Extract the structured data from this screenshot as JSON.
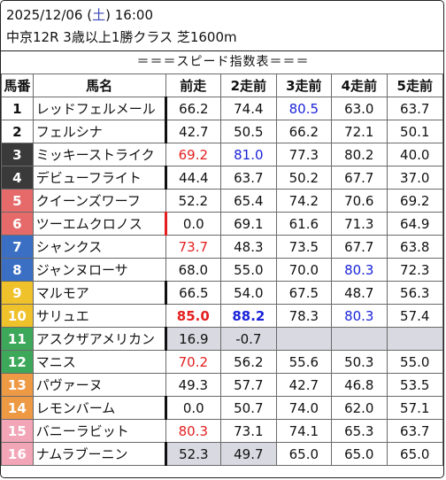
{
  "race": {
    "date": "2025/12/06",
    "day_open": "(",
    "day": "土",
    "day_close": ")",
    "time": "16:00",
    "info": "中京12R 3歳以上1勝クラス 芝1600m"
  },
  "table_title": "＝＝＝スピード指数表＝＝＝",
  "headers": [
    "馬番",
    "馬名",
    "前走",
    "2走前",
    "3走前",
    "4走前",
    "5走前"
  ],
  "horses": [
    {
      "num": "1",
      "name": "レッドフェルメール",
      "bg": "#ffffff",
      "fg": "#111111",
      "vals": [
        "66.2",
        "74.4",
        "80.5",
        "63.0",
        "63.7"
      ],
      "styles": [
        "",
        "",
        "blue",
        "",
        ""
      ],
      "bar": "black"
    },
    {
      "num": "2",
      "name": "フェルシナ",
      "bg": "#ffffff",
      "fg": "#111111",
      "vals": [
        "42.7",
        "50.5",
        "66.2",
        "72.1",
        "50.1"
      ],
      "styles": [
        "",
        "",
        "",
        "",
        ""
      ],
      "bar": "black"
    },
    {
      "num": "3",
      "name": "ミッキーストライク",
      "bg": "#3a3a3a",
      "fg": "#ffffff",
      "vals": [
        "69.2",
        "81.0",
        "77.3",
        "80.2",
        "40.0"
      ],
      "styles": [
        "red",
        "blue",
        "",
        "",
        ""
      ],
      "bar": ""
    },
    {
      "num": "4",
      "name": "デビューフライト",
      "bg": "#3a3a3a",
      "fg": "#ffffff",
      "vals": [
        "44.4",
        "63.7",
        "50.2",
        "67.7",
        "37.0"
      ],
      "styles": [
        "",
        "",
        "",
        "",
        ""
      ],
      "bar": "black"
    },
    {
      "num": "5",
      "name": "クイーンズワーフ",
      "bg": "#e66a6a",
      "fg": "#ffffff",
      "vals": [
        "52.2",
        "65.4",
        "74.2",
        "70.6",
        "69.2"
      ],
      "styles": [
        "",
        "",
        "",
        "",
        ""
      ],
      "bar": ""
    },
    {
      "num": "6",
      "name": "ツーエムクロノス",
      "bg": "#e66a6a",
      "fg": "#ffffff",
      "vals": [
        "0.0",
        "69.1",
        "61.6",
        "71.3",
        "64.9"
      ],
      "styles": [
        "",
        "",
        "",
        "",
        ""
      ],
      "bar": "red"
    },
    {
      "num": "7",
      "name": "シャンクス",
      "bg": "#3b6fc4",
      "fg": "#ffffff",
      "vals": [
        "73.7",
        "48.3",
        "73.5",
        "67.7",
        "63.8"
      ],
      "styles": [
        "red",
        "",
        "",
        "",
        ""
      ],
      "bar": ""
    },
    {
      "num": "8",
      "name": "ジャンヌローサ",
      "bg": "#3b6fc4",
      "fg": "#ffffff",
      "vals": [
        "68.0",
        "55.0",
        "70.0",
        "80.3",
        "72.3"
      ],
      "styles": [
        "",
        "",
        "",
        "blue",
        ""
      ],
      "bar": ""
    },
    {
      "num": "9",
      "name": "マルモア",
      "bg": "#efc12a",
      "fg": "#ffffff",
      "vals": [
        "66.5",
        "54.0",
        "67.5",
        "48.7",
        "56.3"
      ],
      "styles": [
        "",
        "",
        "",
        "",
        ""
      ],
      "bar": "black"
    },
    {
      "num": "10",
      "name": "サリュエ",
      "bg": "#efc12a",
      "fg": "#ffffff",
      "vals": [
        "85.0",
        "88.2",
        "78.3",
        "80.3",
        "57.4"
      ],
      "styles": [
        "red bold",
        "blue bold",
        "",
        "blue",
        ""
      ],
      "bar": ""
    },
    {
      "num": "11",
      "name": "アスクザアメリカン",
      "bg": "#3da85a",
      "fg": "#ffffff",
      "vals": [
        "16.9",
        "-0.7",
        "",
        "",
        ""
      ],
      "styles": [
        "gray",
        "gray",
        "gray",
        "gray",
        "gray"
      ],
      "bar": "black"
    },
    {
      "num": "12",
      "name": "マニス",
      "bg": "#3da85a",
      "fg": "#ffffff",
      "vals": [
        "70.2",
        "56.2",
        "55.6",
        "50.3",
        "55.0"
      ],
      "styles": [
        "red",
        "",
        "",
        "",
        ""
      ],
      "bar": ""
    },
    {
      "num": "13",
      "name": "パヴァーヌ",
      "bg": "#ee9a45",
      "fg": "#ffffff",
      "vals": [
        "49.3",
        "57.7",
        "42.7",
        "46.8",
        "53.5"
      ],
      "styles": [
        "",
        "",
        "",
        "",
        ""
      ],
      "bar": ""
    },
    {
      "num": "14",
      "name": "レモンバーム",
      "bg": "#ee9a45",
      "fg": "#ffffff",
      "vals": [
        "0.0",
        "50.7",
        "74.0",
        "62.0",
        "57.1"
      ],
      "styles": [
        "",
        "",
        "",
        "",
        ""
      ],
      "bar": "black"
    },
    {
      "num": "15",
      "name": "バニーラビット",
      "bg": "#f2a5b7",
      "fg": "#ffffff",
      "vals": [
        "80.3",
        "73.1",
        "74.1",
        "65.3",
        "63.7"
      ],
      "styles": [
        "red",
        "",
        "",
        "",
        ""
      ],
      "bar": ""
    },
    {
      "num": "16",
      "name": "ナムラブーニン",
      "bg": "#f2a5b7",
      "fg": "#ffffff",
      "vals": [
        "52.3",
        "49.7",
        "65.0",
        "65.0",
        "65.0"
      ],
      "styles": [
        "gray",
        "gray",
        "",
        "",
        ""
      ],
      "bar": "black"
    }
  ]
}
